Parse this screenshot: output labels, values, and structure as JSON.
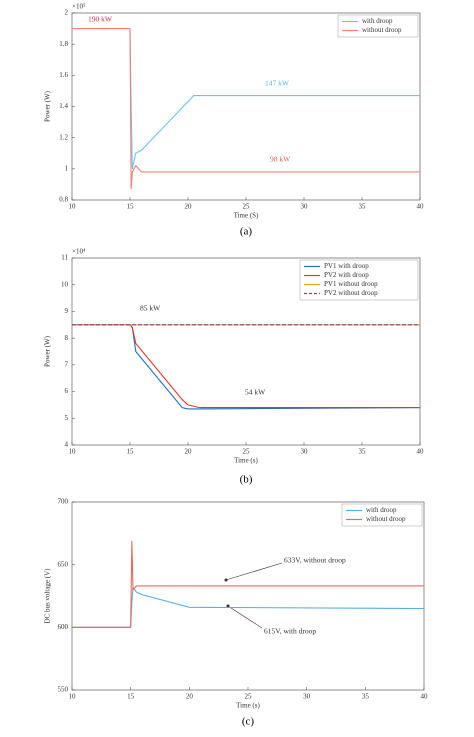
{
  "chart_data": [
    {
      "type": "line",
      "caption": "(a)",
      "xlabel": "Time (S)",
      "ylabel": "Power (W)",
      "y_multiplier": "×10⁵",
      "xlim": [
        10,
        40
      ],
      "xticks": [
        10,
        15,
        20,
        25,
        30,
        35,
        40
      ],
      "ylim": [
        0.8,
        2
      ],
      "yticks": [
        0.8,
        1,
        1.2,
        1.4,
        1.6,
        1.8,
        2
      ],
      "legend": "upper right",
      "x": [
        10,
        15,
        15.1,
        15.2,
        15.5,
        16,
        20.5,
        40
      ],
      "series": [
        {
          "name": "with droop",
          "color": "#6ec6e6",
          "values": [
            1.9,
            1.9,
            1.4,
            1.0,
            1.1,
            1.12,
            1.47,
            1.47
          ]
        },
        {
          "name": "without droop",
          "color": "#f0807a",
          "values": [
            1.9,
            1.9,
            0.87,
            0.98,
            1.02,
            0.98,
            0.98,
            0.98
          ]
        }
      ],
      "annotations": [
        "190 kW",
        "147 kW",
        "98 kW"
      ]
    },
    {
      "type": "line",
      "caption": "(b)",
      "xlabel": "Time (s)",
      "ylabel": "Power (W)",
      "y_multiplier": "×10⁴",
      "xlim": [
        10,
        40
      ],
      "xticks": [
        10,
        15,
        20,
        25,
        30,
        35,
        40
      ],
      "ylim": [
        4,
        11
      ],
      "yticks": [
        4,
        5,
        6,
        7,
        8,
        9,
        10,
        11
      ],
      "legend": "upper right",
      "x": [
        10,
        15,
        15.2,
        15.5,
        19.5,
        20,
        21,
        40
      ],
      "series": [
        {
          "name": "PV1 with droop",
          "color": "#1f6fc0",
          "values": [
            8.5,
            8.5,
            8.4,
            7.5,
            5.4,
            5.35,
            5.35,
            5.4
          ]
        },
        {
          "name": "PV2 with droop",
          "color": "#e03a2a",
          "values": [
            8.5,
            8.5,
            8.4,
            7.8,
            5.7,
            5.5,
            5.4,
            5.4
          ]
        },
        {
          "name": "PV1 without droop",
          "color": "#eea020",
          "values": [
            8.5,
            8.5,
            8.5,
            8.5,
            8.5,
            8.5,
            8.5,
            8.5
          ]
        },
        {
          "name": "PV2 without droop",
          "color": "#7a3ea0",
          "dashed": true,
          "values": [
            8.5,
            8.5,
            8.5,
            8.5,
            8.5,
            8.5,
            8.5,
            8.5
          ]
        }
      ],
      "annotations": [
        "85 kW",
        "54 kW"
      ]
    },
    {
      "type": "line",
      "caption": "(c)",
      "xlabel": "Time (s)",
      "ylabel": "DC bus voltage (V)",
      "xlim": [
        10,
        40
      ],
      "xticks": [
        10,
        15,
        20,
        25,
        30,
        35,
        40
      ],
      "ylim": [
        550,
        700
      ],
      "yticks": [
        550,
        600,
        650,
        700
      ],
      "legend": "upper right",
      "x": [
        10,
        15,
        15.1,
        15.2,
        15.5,
        16,
        20,
        40
      ],
      "series": [
        {
          "name": "with droop",
          "color": "#5aaee0",
          "values": [
            600,
            600,
            620,
            632,
            628,
            626,
            616,
            615
          ]
        },
        {
          "name": "without droop",
          "color": "#e86a5a",
          "values": [
            600,
            600,
            669,
            630,
            633,
            633,
            633,
            633
          ]
        }
      ],
      "annotations": [
        "633V, without droop",
        "615V, with droop"
      ]
    }
  ]
}
